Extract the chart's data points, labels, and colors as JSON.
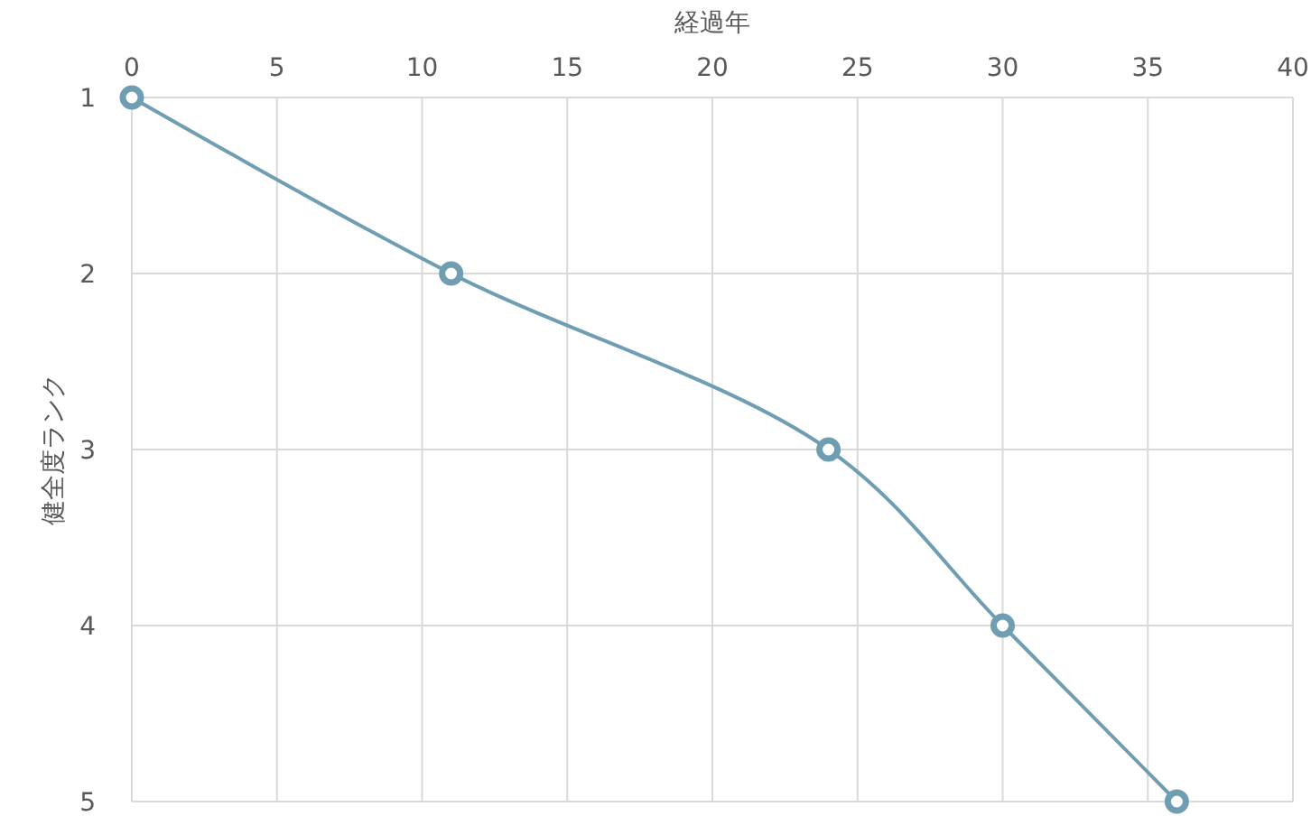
{
  "chart_data": {
    "type": "line",
    "xlabel": "経過年",
    "ylabel": "健全度ランク",
    "x": [
      0,
      11,
      24,
      30,
      36
    ],
    "series": [
      {
        "color": "#6f9db2",
        "values": [
          1,
          2,
          3,
          4,
          5
        ]
      }
    ],
    "xlim": [
      0,
      40
    ],
    "xticks": [
      0,
      5,
      10,
      15,
      20,
      25,
      30,
      35,
      40
    ],
    "ylim": [
      5,
      1
    ],
    "yticks": [
      1,
      2,
      3,
      4,
      5
    ],
    "grid": true,
    "marker": "circle",
    "line_style": "solid"
  }
}
